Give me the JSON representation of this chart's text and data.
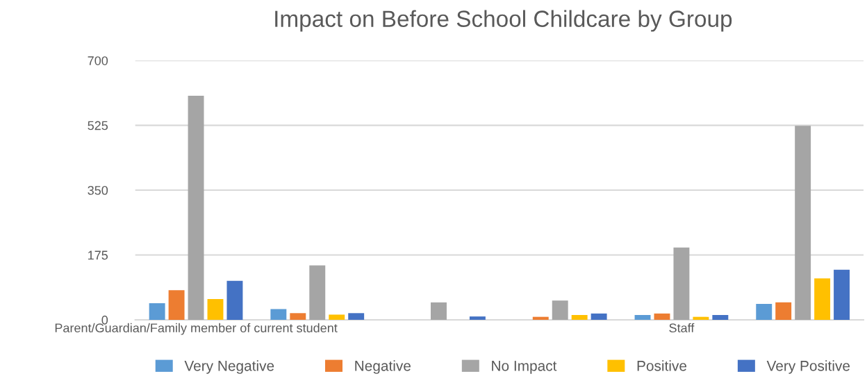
{
  "chart_data": {
    "type": "bar",
    "title": "Impact on Before School Childcare by Group",
    "categories": [
      "Parent/Guardian/Family member of current student",
      null,
      null,
      null,
      "Staff",
      null
    ],
    "series": [
      {
        "name": "Very Negative",
        "color": "#5b9bd5",
        "values": [
          45,
          29,
          0,
          0,
          13,
          43
        ]
      },
      {
        "name": "Negative",
        "color": "#ed7d31",
        "values": [
          80,
          18,
          0,
          8,
          17,
          47
        ]
      },
      {
        "name": "No Impact",
        "color": "#a5a5a5",
        "values": [
          605,
          147,
          47,
          52,
          195,
          524
        ]
      },
      {
        "name": "Positive",
        "color": "#ffc000",
        "values": [
          56,
          14,
          0,
          13,
          8,
          112
        ]
      },
      {
        "name": "Very Positive",
        "color": "#4472c4",
        "values": [
          105,
          18,
          9,
          17,
          13,
          135
        ]
      }
    ],
    "ylim": [
      0,
      700
    ],
    "yticks": [
      0,
      175,
      350,
      525,
      700
    ],
    "grid": "y",
    "legend": "bottom"
  }
}
